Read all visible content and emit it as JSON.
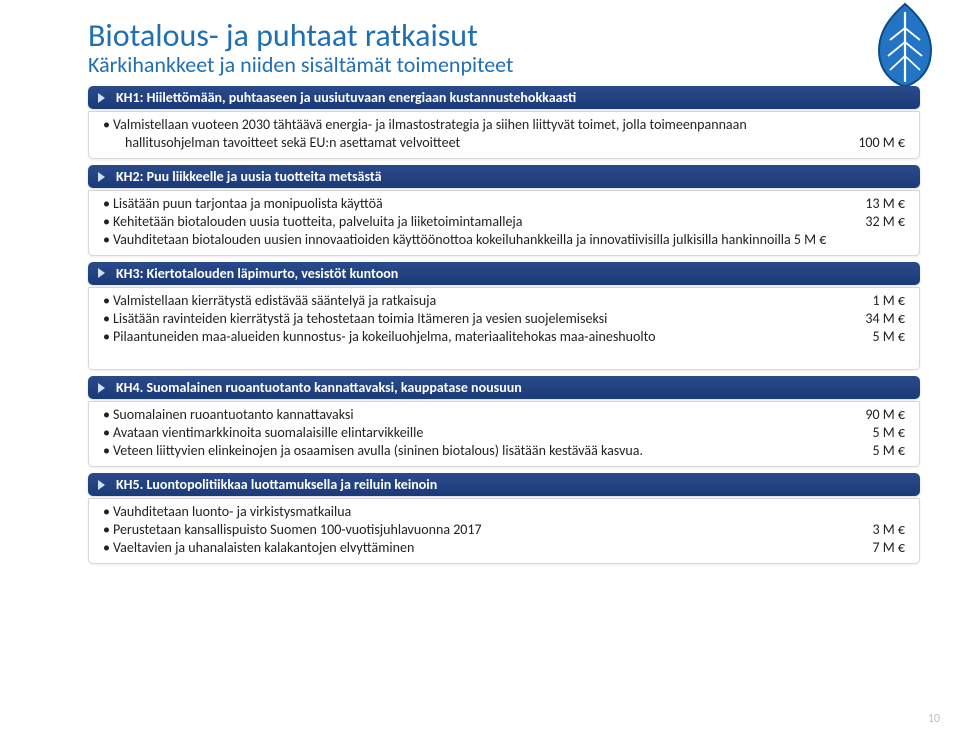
{
  "colors": {
    "title": "#1f6fb5",
    "header_bg_top": "#2a4a8a",
    "header_bg_bottom": "#1b3a78",
    "leaf_fill": "#2374c4",
    "leaf_dark": "#0c4c86",
    "leaf_vein": "#ffffff",
    "border": "#d8d8d8",
    "page_num": "#bdbdbd"
  },
  "title": "Biotalous- ja puhtaat ratkaisut",
  "subtitle": "Kärkihankkeet ja niiden sisältämät toimenpiteet",
  "page_number": "10",
  "sections": [
    {
      "header": "KH1: Hiilettömään, puhtaaseen ja uusiutuvaan energiaan kustannustehokkaasti",
      "items": [
        {
          "text": "Valmistellaan vuoteen 2030 tähtäävä energia- ja ilmastostrategia ja siihen liittyvät toimet, jolla toimeenpannaan",
          "amount": ""
        },
        {
          "text": "hallitusohjelman tavoitteet sekä EU:n asettamat velvoitteet",
          "amount": "100 M €",
          "indent": true,
          "no_bullet": true
        }
      ]
    },
    {
      "header": "KH2: Puu liikkeelle ja uusia tuotteita metsästä",
      "items": [
        {
          "text": "Lisätään puun tarjontaa ja monipuolista käyttöä",
          "amount": "13 M €"
        },
        {
          "text": "Kehitetään biotalouden uusia tuotteita, palveluita ja liiketoimintamalleja",
          "amount": "32 M €"
        },
        {
          "text": "Vauhditetaan biotalouden uusien innovaatioiden käyttöönottoa kokeiluhankkeilla ja innovatiivisilla julkisilla hankinnoilla 5 M €",
          "amount": ""
        }
      ]
    },
    {
      "header": "KH3: Kiertotalouden läpimurto, vesistöt kuntoon",
      "items": [
        {
          "text": "Valmistellaan kierrätystä edistävää sääntelyä ja ratkaisuja",
          "amount": "1 M €"
        },
        {
          "text": "Lisätään ravinteiden kierrätystä ja tehostetaan toimia Itämeren ja vesien suojelemiseksi",
          "amount": "34 M €"
        },
        {
          "text": "Pilaantuneiden maa-alueiden kunnostus- ja kokeiluohjelma, materiaalitehokas maa-aineshuolto",
          "amount": "5 M €"
        },
        {
          "text": "",
          "amount": "",
          "blank": true
        }
      ]
    },
    {
      "header": "KH4. Suomalainen ruoantuotanto kannattavaksi, kauppatase nousuun",
      "items": [
        {
          "text": "Suomalainen ruoantuotanto kannattavaksi",
          "amount": "90 M €"
        },
        {
          "text": "Avataan vientimarkkinoita suomalaisille elintarvikkeille",
          "amount": "5 M €"
        },
        {
          "text": "Veteen liittyvien elinkeinojen ja osaamisen avulla (sininen biotalous) lisätään kestävää kasvua.",
          "amount": "5 M €"
        }
      ]
    },
    {
      "header": "KH5. Luontopolitiikkaa luottamuksella ja reiluin keinoin",
      "items": [
        {
          "text": "Vauhditetaan luonto- ja virkistysmatkailua",
          "amount": ""
        },
        {
          "text": "Perustetaan kansallispuisto Suomen 100-vuotisjuhlavuonna 2017",
          "amount": "3 M €"
        },
        {
          "text": "Vaeltavien ja uhanalaisten kalakantojen elvyttäminen",
          "amount": "7 M €"
        }
      ]
    }
  ]
}
